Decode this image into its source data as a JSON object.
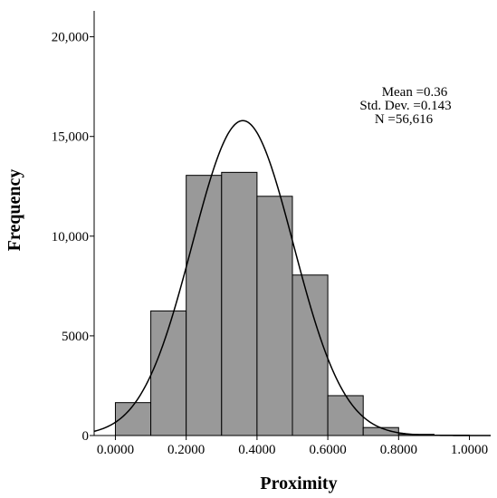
{
  "chart_data": {
    "type": "bar",
    "subtype": "histogram",
    "xlabel": "Proximity",
    "ylabel": "Frequency",
    "xlim": [
      -0.06,
      1.06
    ],
    "ylim": [
      0,
      21300
    ],
    "bin_edges": [
      0.0,
      0.1,
      0.2,
      0.3,
      0.4,
      0.5,
      0.6,
      0.7,
      0.8,
      0.9,
      1.0
    ],
    "values": [
      1650,
      6250,
      13050,
      13200,
      12000,
      8050,
      2000,
      400,
      60,
      20
    ],
    "x_ticks": [
      0.0,
      0.2,
      0.4,
      0.6,
      0.8,
      1.0
    ],
    "x_tick_labels": [
      "0.0000",
      "0.2000",
      "0.4000",
      "0.6000",
      "0.8000",
      "1.0000"
    ],
    "y_ticks": [
      0,
      5000,
      10000,
      15000,
      20000
    ],
    "y_tick_labels": [
      "0",
      "5000",
      "10,000",
      "15,000",
      "20,000"
    ],
    "normal_curve": {
      "mean": 0.36,
      "std": 0.143,
      "n": 56616,
      "bin_width": 0.1
    },
    "bar_color": "#999999",
    "stats": {
      "mean": "Mean =0.36",
      "std": "Std. Dev. =0.143",
      "n": "N =56,616"
    },
    "grid": false
  }
}
